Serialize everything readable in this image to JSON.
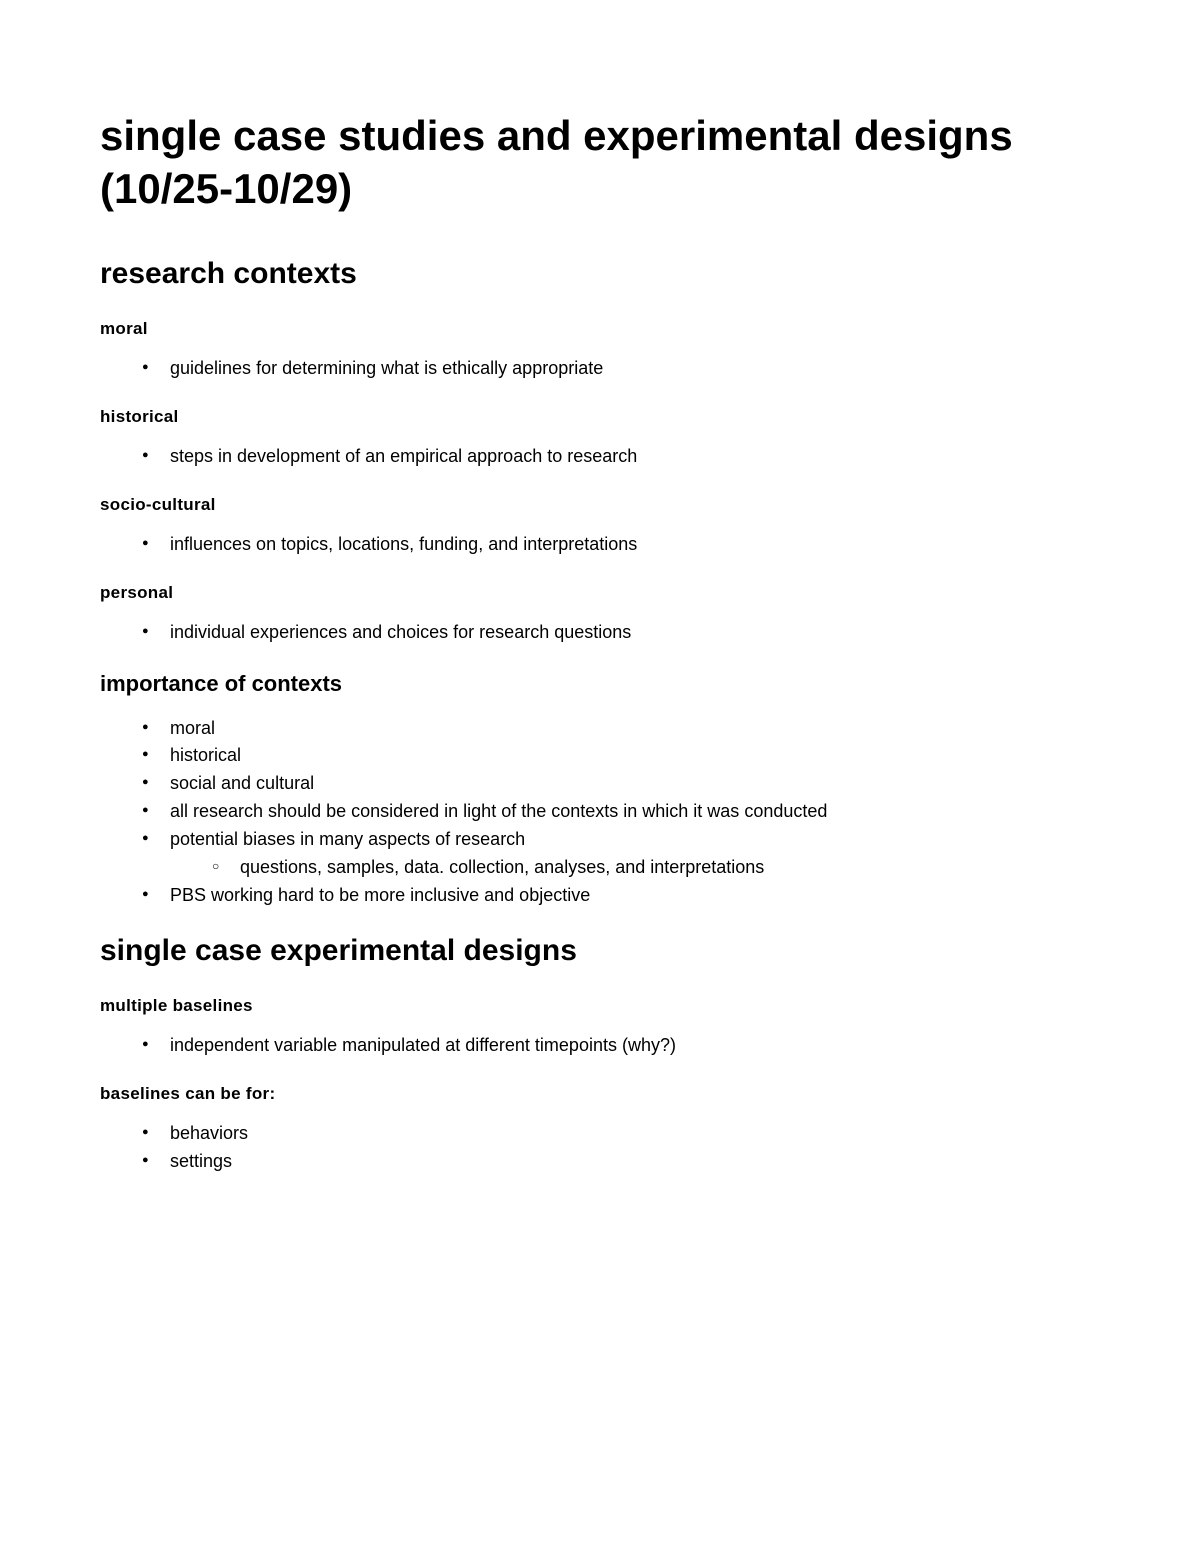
{
  "title": "single case studies and experimental designs (10/25-10/29)",
  "sections": [
    {
      "heading": "research contexts",
      "level": 2,
      "subsections": [
        {
          "heading": "moral",
          "level": 4,
          "items": [
            {
              "text": "guidelines for determining what is ethically appropriate"
            }
          ]
        },
        {
          "heading": "historical",
          "level": 4,
          "items": [
            {
              "text": "steps in development of an empirical approach to research"
            }
          ]
        },
        {
          "heading": "socio-cultural",
          "level": 4,
          "items": [
            {
              "text": "influences on topics, locations, funding, and interpretations"
            }
          ]
        },
        {
          "heading": "personal",
          "level": 4,
          "items": [
            {
              "text": "individual experiences and choices for research questions"
            }
          ]
        },
        {
          "heading": "importance of contexts",
          "level": 3,
          "items": [
            {
              "text": "moral"
            },
            {
              "text": "historical"
            },
            {
              "text": "social and cultural"
            },
            {
              "text": "all research should be considered in light of the contexts in which it was conducted"
            },
            {
              "text": "potential biases in many aspects of research",
              "subitems": [
                {
                  "text": "questions, samples, data. collection, analyses, and interpretations"
                }
              ]
            },
            {
              "text": "PBS working hard to be more inclusive and objective"
            }
          ]
        }
      ]
    },
    {
      "heading": "single case experimental designs",
      "level": 2,
      "subsections": [
        {
          "heading": "multiple baselines",
          "level": 4,
          "items": [
            {
              "text": "independent variable manipulated at different timepoints (why?)"
            }
          ]
        },
        {
          "heading": "baselines can be for:",
          "level": 4,
          "items": [
            {
              "text": "behaviors"
            },
            {
              "text": "settings"
            }
          ]
        }
      ]
    }
  ],
  "styles": {
    "background_color": "#ffffff",
    "text_color": "#000000",
    "h1_fontsize": 42,
    "h2_fontsize": 30,
    "h3_fontsize": 22,
    "h4_fontsize": 17,
    "body_fontsize": 18,
    "font_family": "Arial"
  }
}
